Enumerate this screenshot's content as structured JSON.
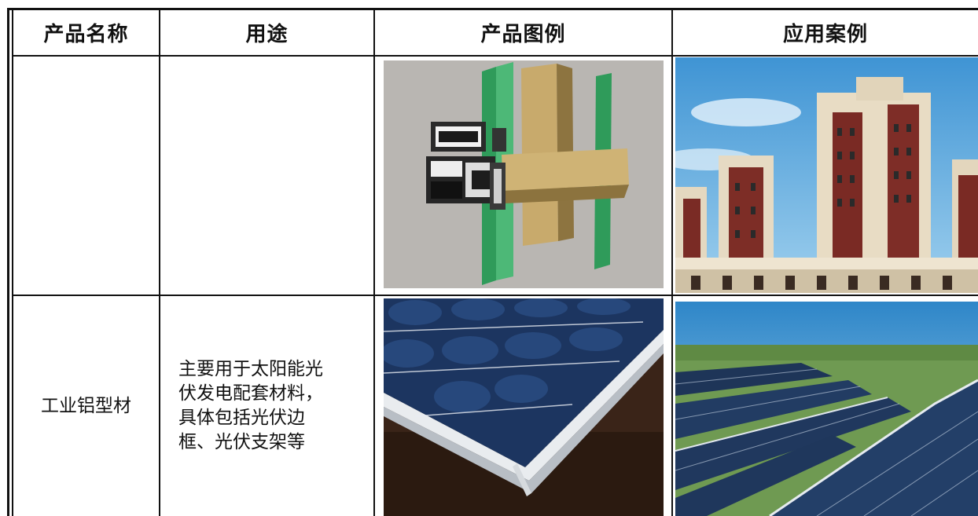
{
  "headers": {
    "name": "产品名称",
    "use": "用途",
    "product_image": "产品图例",
    "application_case": "应用案例"
  },
  "rows": [
    {
      "name": "",
      "use_lines": [],
      "product_image_icon": "aluminum-window-profile-cross-section",
      "application_icon": "residential-buildings"
    },
    {
      "name": "工业铝型材",
      "use_lines": [
        "主要用于太阳能光",
        "伏发电配套材料，",
        "具体包括光伏边",
        "框、光伏支架等"
      ],
      "product_image_icon": "solar-panel-frame-closeup",
      "application_icon": "solar-farm"
    }
  ],
  "colors": {
    "border": "#111111",
    "panel_blue": "#1f3a66",
    "sky_blue": "#5ba8dc",
    "brick_red": "#7a2a24",
    "bronze": "#b59a62",
    "glass_green": "#2e9a58"
  }
}
